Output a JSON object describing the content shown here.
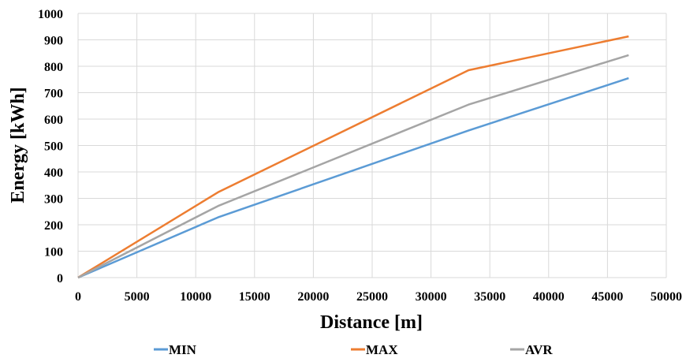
{
  "chart_data": {
    "type": "line",
    "title": "",
    "xlabel": "Distance [m]",
    "ylabel": "Energy [kWh]",
    "xlim": [
      0,
      50000
    ],
    "ylim": [
      0,
      1000
    ],
    "x_ticks": [
      "0",
      "5000",
      "10000",
      "15000",
      "20000",
      "25000",
      "30000",
      "35000",
      "40000",
      "45000",
      "50000"
    ],
    "y_ticks": [
      "0",
      "100",
      "200",
      "300",
      "400",
      "500",
      "600",
      "700",
      "800",
      "900",
      "1000"
    ],
    "grid": true,
    "legend_position": "bottom",
    "series": [
      {
        "name": "MIN",
        "color": "#5b9bd5",
        "points": [
          [
            0,
            0
          ],
          [
            11900,
            228
          ],
          [
            33200,
            557
          ],
          [
            46800,
            755
          ]
        ]
      },
      {
        "name": "MAX",
        "color": "#ed7d31",
        "points": [
          [
            0,
            0
          ],
          [
            11900,
            323
          ],
          [
            33200,
            785
          ],
          [
            46800,
            913
          ]
        ]
      },
      {
        "name": "AVR",
        "color": "#a5a5a5",
        "points": [
          [
            0,
            0
          ],
          [
            11900,
            271
          ],
          [
            33200,
            655
          ],
          [
            46800,
            842
          ]
        ]
      }
    ]
  }
}
